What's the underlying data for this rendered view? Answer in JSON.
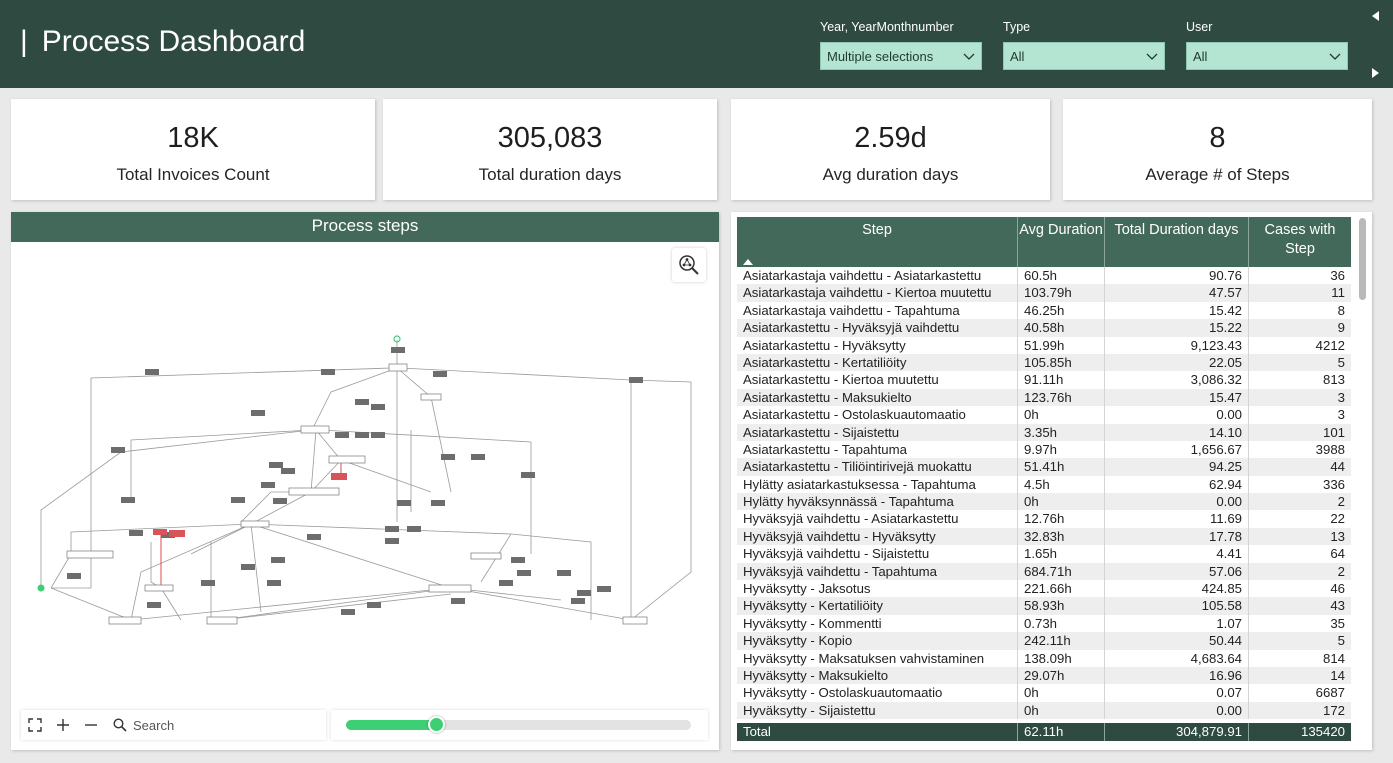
{
  "header": {
    "title": "Process Dashboard",
    "slicers": [
      {
        "label": "Year, YearMonthnumber",
        "value": "Multiple selections"
      },
      {
        "label": "Type",
        "value": "All"
      },
      {
        "label": "User",
        "value": "All"
      }
    ]
  },
  "kpis": [
    {
      "value": "18K",
      "caption": "Total Invoices Count"
    },
    {
      "value": "305,083",
      "caption": "Total duration days"
    },
    {
      "value": "2.59d",
      "caption": "Avg duration days"
    },
    {
      "value": "8",
      "caption": "Average # of Steps"
    }
  ],
  "process": {
    "title": "Process steps",
    "search_placeholder": "Search",
    "slider_level": 0.26
  },
  "table": {
    "headers": [
      "Step",
      "Avg Duration",
      "Total Duration days",
      "Cases with Step"
    ],
    "rows": [
      [
        "Asiatarkastaja vaihdettu - Asiatarkastettu",
        "60.5h",
        "90.76",
        "36"
      ],
      [
        "Asiatarkastaja vaihdettu - Kiertoa muutettu",
        "103.79h",
        "47.57",
        "11"
      ],
      [
        "Asiatarkastaja vaihdettu - Tapahtuma",
        "46.25h",
        "15.42",
        "8"
      ],
      [
        "Asiatarkastettu - Hyväksyjä vaihdettu",
        "40.58h",
        "15.22",
        "9"
      ],
      [
        "Asiatarkastettu - Hyväksytty",
        "51.99h",
        "9,123.43",
        "4212"
      ],
      [
        "Asiatarkastettu - Kertatiliöity",
        "105.85h",
        "22.05",
        "5"
      ],
      [
        "Asiatarkastettu - Kiertoa muutettu",
        "91.11h",
        "3,086.32",
        "813"
      ],
      [
        "Asiatarkastettu - Maksukielto",
        "123.76h",
        "15.47",
        "3"
      ],
      [
        "Asiatarkastettu - Ostolaskuautomaatio",
        "0h",
        "0.00",
        "3"
      ],
      [
        "Asiatarkastettu - Sijaistettu",
        "3.35h",
        "14.10",
        "101"
      ],
      [
        "Asiatarkastettu - Tapahtuma",
        "9.97h",
        "1,656.67",
        "3988"
      ],
      [
        "Asiatarkastettu - Tiliöintirivejä muokattu",
        "51.41h",
        "94.25",
        "44"
      ],
      [
        "Hylätty asiatarkastuksessa - Tapahtuma",
        "4.5h",
        "62.94",
        "336"
      ],
      [
        "Hylätty hyväksynnässä - Tapahtuma",
        "0h",
        "0.00",
        "2"
      ],
      [
        "Hyväksyjä vaihdettu - Asiatarkastettu",
        "12.76h",
        "11.69",
        "22"
      ],
      [
        "Hyväksyjä vaihdettu - Hyväksytty",
        "32.83h",
        "17.78",
        "13"
      ],
      [
        "Hyväksyjä vaihdettu - Sijaistettu",
        "1.65h",
        "4.41",
        "64"
      ],
      [
        "Hyväksyjä vaihdettu - Tapahtuma",
        "684.71h",
        "57.06",
        "2"
      ],
      [
        "Hyväksytty - Jaksotus",
        "221.66h",
        "424.85",
        "46"
      ],
      [
        "Hyväksytty - Kertatiliöity",
        "58.93h",
        "105.58",
        "43"
      ],
      [
        "Hyväksytty - Kommentti",
        "0.73h",
        "1.07",
        "35"
      ],
      [
        "Hyväksytty - Kopio",
        "242.11h",
        "50.44",
        "5"
      ],
      [
        "Hyväksytty - Maksatuksen vahvistaminen",
        "138.09h",
        "4,683.64",
        "814"
      ],
      [
        "Hyväksytty - Maksukielto",
        "29.07h",
        "16.96",
        "14"
      ],
      [
        "Hyväksytty - Ostolaskuautomaatio",
        "0h",
        "0.07",
        "6687"
      ],
      [
        "Hyväksytty - Sijaistettu",
        "0h",
        "0.00",
        "172"
      ]
    ],
    "total": [
      "Total",
      "62.11h",
      "304,879.91",
      "135420"
    ]
  }
}
